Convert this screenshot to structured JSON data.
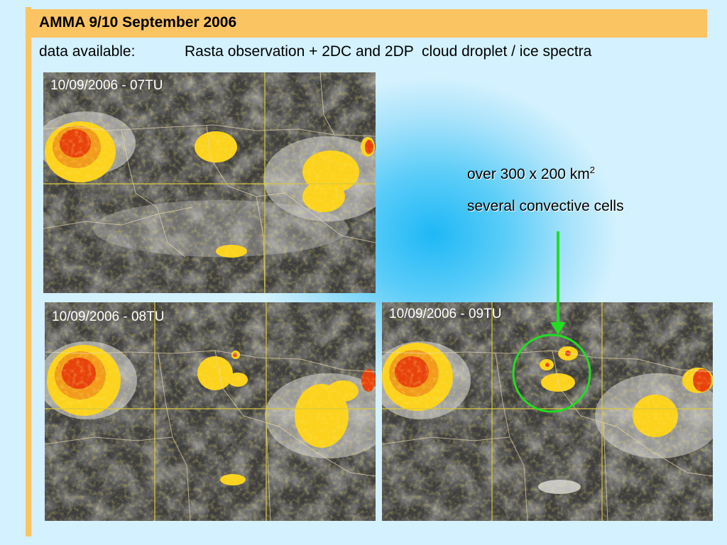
{
  "slide": {
    "title": "AMMA 9/10 September 2006",
    "subtitle_label": "data available:",
    "subtitle_text": "Rasta observation + 2DC and 2DP  cloud droplet / ice spectra",
    "annotation_line1": "over 300 x 200 km",
    "annotation_sup": "2",
    "annotation_line2": "several convective cells",
    "colors": {
      "accent_bar": "#fbc462",
      "arrow": "#22dd22",
      "circle": "#22dd22",
      "grid_lines": "#d8c840",
      "cloud_hot": "#e8410c",
      "cloud_warm": "#fcd21c"
    }
  },
  "images": [
    {
      "timestamp": "10/09/2006 - 07TU"
    },
    {
      "timestamp": "10/09/2006 - 08TU"
    },
    {
      "timestamp": "10/09/2006 - 09TU"
    }
  ]
}
